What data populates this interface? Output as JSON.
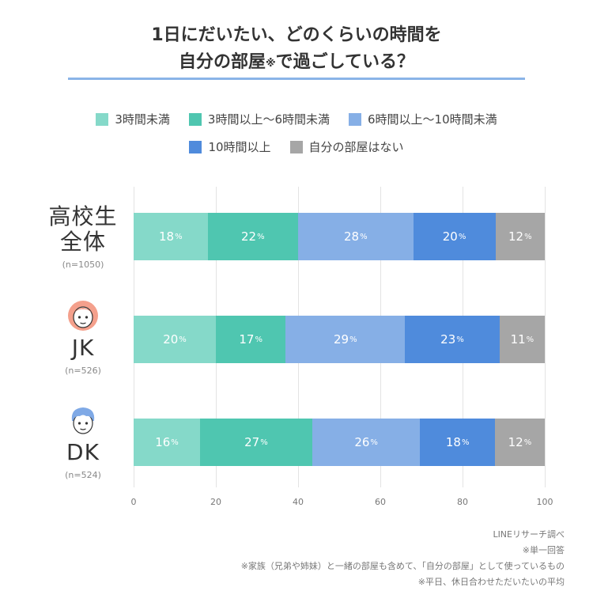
{
  "title": {
    "line1": "1日にだいたい、どのくらいの時間を",
    "line2_main": "自分の部屋",
    "line2_mark": "※",
    "line2_end": "で過ごしている？"
  },
  "colors": {
    "under3": "#85d9c9",
    "3to6": "#4fc6b0",
    "6to10": "#86afe6",
    "over10": "#4f8bdc",
    "none": "#a6a6a6",
    "title_rule": "#8ab4e8"
  },
  "icons": [
    "girl-face-icon",
    "boy-face-icon"
  ],
  "chart_data": {
    "type": "bar",
    "orientation": "horizontal",
    "stacked": true,
    "categories": [
      "高校生全体",
      "JK",
      "DK"
    ],
    "category_lines": [
      [
        "高校生",
        "全体"
      ],
      [
        "JK"
      ],
      [
        "DK"
      ]
    ],
    "sample_sizes": [
      "(n=1050)",
      "(n=526)",
      "(n=524)"
    ],
    "series": [
      {
        "name": "3時間未満",
        "values": [
          18,
          20,
          16
        ]
      },
      {
        "name": "3時間以上〜6時間未満",
        "values": [
          22,
          17,
          27
        ]
      },
      {
        "name": "6時間以上〜10時間未満",
        "values": [
          28,
          29,
          26
        ]
      },
      {
        "name": "10時間以上",
        "values": [
          20,
          23,
          18
        ]
      },
      {
        "name": "自分の部屋はない",
        "values": [
          12,
          11,
          12
        ]
      }
    ],
    "value_suffix": "%",
    "xlim": [
      0,
      100
    ],
    "xticks": [
      "0",
      "20",
      "40",
      "60",
      "80",
      "100"
    ],
    "grid": true,
    "legend_position": "top"
  },
  "notes": [
    "LINEリサーチ調べ",
    "※単一回答",
    "※家族（兄弟や姉妹）と一緒の部屋も含めて、「自分の部屋」として使っているもの",
    "※平日、休日合わせただいたいの平均"
  ]
}
